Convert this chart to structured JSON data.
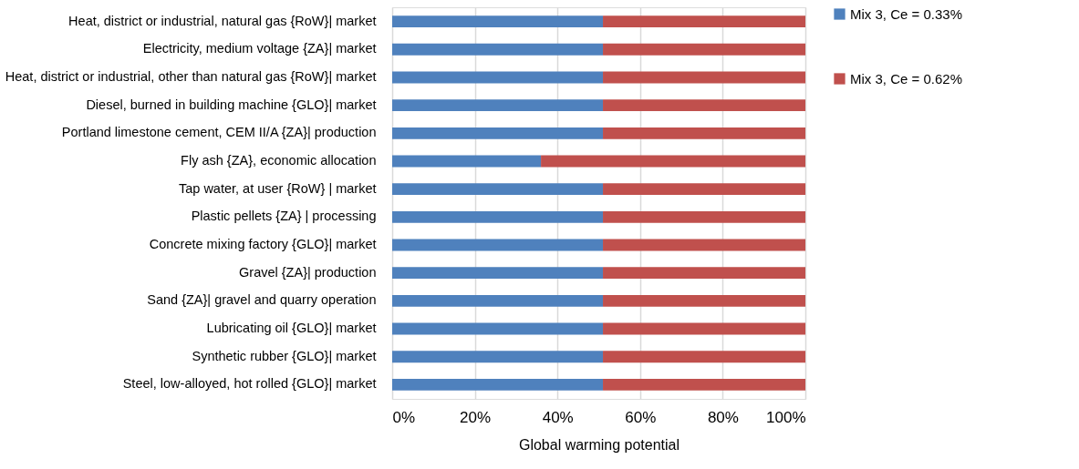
{
  "chart_data": {
    "type": "bar",
    "orientation": "horizontal",
    "stacked": true,
    "categories": [
      "Heat, district or industrial, natural gas {RoW}| market",
      "Electricity, medium voltage {ZA}| market",
      "Heat, district or industrial, other than natural gas {RoW}| market",
      "Diesel, burned in building machine {GLO}| market",
      "Portland limestone cement, CEM II/A {ZA}| production",
      "Fly ash {ZA}, economic allocation",
      "Tap water, at user {RoW} | market",
      "Plastic pellets {ZA} | processing",
      "Concrete mixing factory {GLO}| market",
      "Gravel {ZA}| production",
      "Sand {ZA}| gravel and quarry operation ",
      "Lubricating oil {GLO}| market",
      "Synthetic rubber {GLO}| market",
      "Steel, low-alloyed, hot rolled {GLO}| market"
    ],
    "series": [
      {
        "name": "Mix 3, Ce = 0.33%",
        "color": "#4f81bd",
        "values": [
          51,
          51,
          51,
          51,
          51,
          36,
          51,
          51,
          51,
          51,
          51,
          51,
          51,
          51
        ]
      },
      {
        "name": "Mix 3, Ce = 0.62%",
        "color": "#c0504d",
        "values": [
          49,
          49,
          49,
          49,
          49,
          64,
          49,
          49,
          49,
          49,
          49,
          49,
          49,
          49
        ]
      }
    ],
    "xlabel": "Global warming potential",
    "xlim": [
      0,
      100
    ],
    "xticks": [
      {
        "value": 0,
        "label": "0%"
      },
      {
        "value": 20,
        "label": "20%"
      },
      {
        "value": 40,
        "label": "40%"
      },
      {
        "value": 60,
        "label": "60%"
      },
      {
        "value": 80,
        "label": "80%"
      },
      {
        "value": 100,
        "label": "100%"
      }
    ],
    "grid": "x",
    "legend": "right"
  }
}
